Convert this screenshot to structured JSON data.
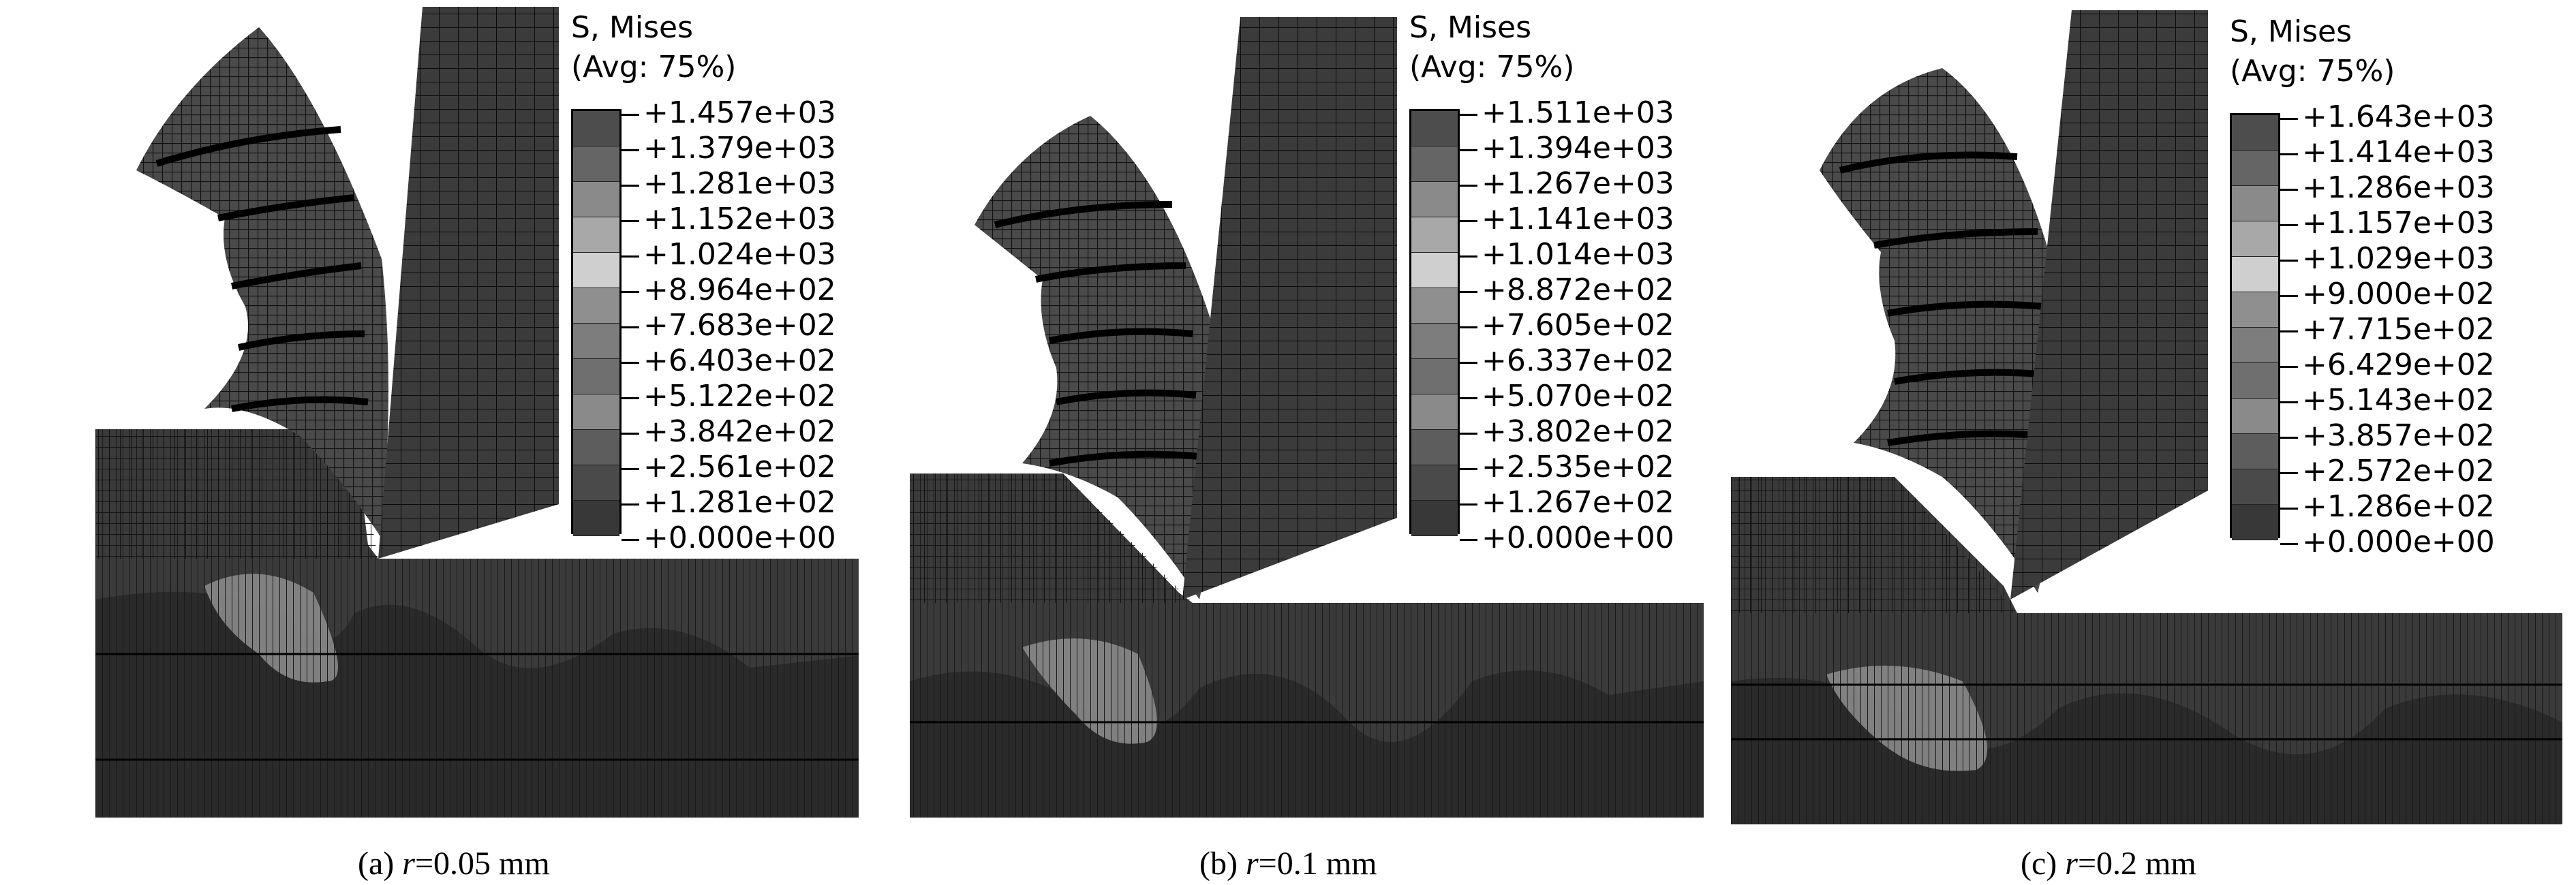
{
  "panels": [
    {
      "legend_title": "S, Mises",
      "legend_subtitle": "(Avg: 75%)",
      "ticks": [
        "+1.457e+03",
        "+1.379e+03",
        "+1.281e+03",
        "+1.152e+03",
        "+1.024e+03",
        "+8.964e+02",
        "+7.683e+02",
        "+6.403e+02",
        "+5.122e+02",
        "+3.842e+02",
        "+2.561e+02",
        "+1.281e+02",
        "+0.000e+00"
      ],
      "caption_prefix": "(a) ",
      "caption_var": "r",
      "caption_value": "=0.05 mm"
    },
    {
      "legend_title": "S, Mises",
      "legend_subtitle": "(Avg: 75%)",
      "ticks": [
        "+1.511e+03",
        "+1.394e+03",
        "+1.267e+03",
        "+1.141e+03",
        "+1.014e+03",
        "+8.872e+02",
        "+7.605e+02",
        "+6.337e+02",
        "+5.070e+02",
        "+3.802e+02",
        "+2.535e+02",
        "+1.267e+02",
        "+0.000e+00"
      ],
      "caption_prefix": "(b) ",
      "caption_var": "r",
      "caption_value": "=0.1 mm"
    },
    {
      "legend_title": "S, Mises",
      "legend_subtitle": "(Avg: 75%)",
      "ticks": [
        "+1.643e+03",
        "+1.414e+03",
        "+1.286e+03",
        "+1.157e+03",
        "+1.029e+03",
        "+9.000e+02",
        "+7.715e+02",
        "+6.429e+02",
        "+5.143e+02",
        "+3.857e+02",
        "+2.572e+02",
        "+1.286e+02",
        "+0.000e+00"
      ],
      "caption_prefix": "(c) ",
      "caption_var": "r",
      "caption_value": "=0.2 mm"
    }
  ],
  "legend_band_colors": [
    "#4d4d4d",
    "#656565",
    "#8a8a8a",
    "#a8a8a8",
    "#cfcfcf",
    "#8f8f8f",
    "#7d7d7d",
    "#6f6f6f",
    "#8a8a8a",
    "#5d5d5d",
    "#4a4a4a",
    "#383838"
  ]
}
